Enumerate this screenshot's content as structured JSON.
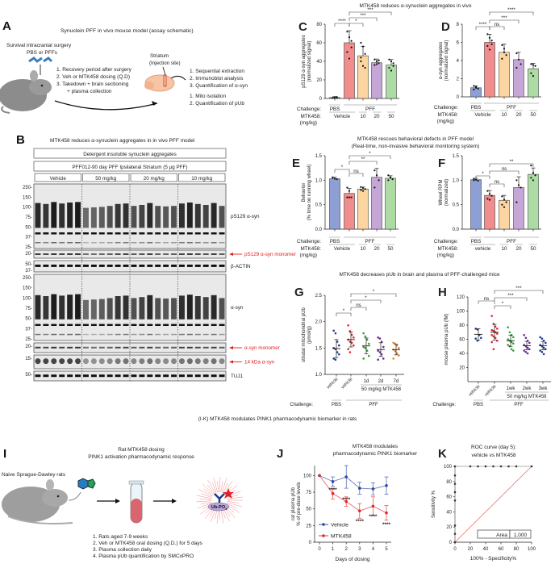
{
  "panelA": {
    "letter": "A",
    "title": "Synuclein PFF in vivo mouse model (assay schematic)",
    "surgery": "Survival intracranial surgery",
    "pbs_pffs": "PBS or PFFs",
    "steps": [
      "1. Recovery period after surgery",
      "2. Veh or MTK458 dosing (Q.D)",
      "3. Takedown + brain sectioning",
      "+ plasma collection"
    ],
    "striatum": "Striatum",
    "injection": "(Injection site)",
    "analysis1": [
      "1. Sequential extraction",
      "2. Immunoblot analysis",
      "3. Quantification of α-syn"
    ],
    "analysis2": [
      "1. Mito isolation",
      "2. Quantification of pUb"
    ]
  },
  "panelB": {
    "letter": "B",
    "title": "MTK458 reduces α-synuclein aggregates in in vivo PFF model",
    "header1": "Detergent insoluble synuclein aggregates",
    "header2": "PFF012-90 day PFF Ipsilateral Striatum (5 µg PFF)",
    "groups": [
      "Vehicle",
      "50 mg/kg",
      "20 mg/kg",
      "10 mg/kg"
    ],
    "mw_ps129": [
      "250-",
      "150-",
      "100-",
      "75-",
      "50-",
      "37-",
      "25-"
    ],
    "mw_mono1": [
      "20-"
    ],
    "mw_actin": [
      "50-",
      "37-"
    ],
    "mw_asyn": [
      "250-",
      "150-",
      "100-",
      "75-",
      "50-",
      "37-",
      "25-"
    ],
    "mw_mono2": [
      "20-"
    ],
    "mw_14": [
      "15-"
    ],
    "mw_tuj": [
      "50-"
    ],
    "labels": {
      "ps129": "pS129 α-syn",
      "ps129_mono": "pS129 α-syn monomer",
      "actin": "β-ACTIN",
      "asyn": "α-syn",
      "asyn_mono": "α-syn monomer",
      "kda14": "14 kDa α-syn",
      "tuj1": "TUJ1"
    }
  },
  "sections": {
    "cd_title": "MTK458 reduces α-synuclein aggregates in vivo",
    "ef_title1": "MTK458 rescues behavioral defects in PFF model",
    "ef_title2": "(Real-time, non-invasive behavioral monitoring system)",
    "gh_title": "MTK458 decreases pUb in brain and plasma of PFF-challenged mice",
    "ik_title": "(I-K) MTK458 modulates PINK1 pharmacodynamic biomarker in rats"
  },
  "panelI": {
    "letter": "I",
    "title1": "Rat MTK458 dosing",
    "title2": "PINK1 activation pharmacodynamic response",
    "rats": "Naive Sprague-Dawley rats",
    "ub": "Ub-PO",
    "ub_sub": "3",
    "steps": [
      "1. Rats aged 7-9 weeks",
      "2. Veh or MTK458 oral dosing (Q.D.) for 5 days",
      "3. Plasma collection daily",
      "4. Plasma pUb quantification by SMCxPRO"
    ]
  },
  "colors": {
    "pbs": "#8d9fd4",
    "vehicle": "#f28d8d",
    "d10": "#fcd5a0",
    "d20": "#c6a6d6",
    "d50": "#acdca4",
    "g_pbs": "#1f3a93",
    "g_veh": "#e0202a",
    "g_1": "#2ca02c",
    "g_2": "#6a2c91",
    "g_3": "#f07f1a",
    "red_label": "#e02020",
    "line_vehicle": "#2d47a0",
    "line_mtk": "#e02828"
  },
  "chart_data": [
    {
      "id": "C",
      "letter": "C",
      "type": "bar",
      "ylabel": "pS129 α-syn aggregates",
      "ylabel2": "(normalized signal)",
      "ylim": [
        0,
        80
      ],
      "yticks": [
        "0",
        "20",
        "40",
        "60",
        "80"
      ],
      "categories": [
        "PBS Vehicle",
        "PFF Vehicle",
        "PFF 10",
        "PFF 20",
        "PFF 50"
      ],
      "values": [
        1,
        60,
        46,
        38.5,
        36
      ],
      "sd": [
        1,
        13,
        10,
        4,
        6
      ],
      "points": [
        [
          0.5,
          1,
          1.5,
          0.8,
          1.2,
          0.6
        ],
        [
          72,
          66,
          55,
          50,
          43,
          62
        ],
        [
          60,
          56,
          48,
          40,
          35,
          33,
          44
        ],
        [
          42,
          40,
          38,
          36,
          37,
          41
        ],
        [
          42,
          40,
          35,
          33,
          30,
          38
        ]
      ],
      "significance": [
        {
          "from": 0,
          "to": 1,
          "label": "****"
        },
        {
          "from": 1,
          "to": 2,
          "label": "*"
        },
        {
          "from": 1,
          "to": 3,
          "label": "***"
        },
        {
          "from": 1,
          "to": 4,
          "label": "***"
        }
      ],
      "challenge_label": "Challenge:",
      "challenge": [
        "PBS",
        "PFF"
      ],
      "dose_label": "MTK458:",
      "dose_unit": "(mg/kg)",
      "doses": [
        "Vehicle",
        "10",
        "20",
        "50"
      ]
    },
    {
      "id": "D",
      "letter": "D",
      "type": "bar",
      "ylabel": "α-syn aggregates",
      "ylabel2": "(normalized signal)",
      "ylim": [
        0,
        8
      ],
      "yticks": [
        "0",
        "2",
        "4",
        "6",
        "8"
      ],
      "categories": [
        "PBS Vehicle",
        "PFF Vehicle",
        "PFF 10",
        "PFF 20",
        "PFF 50"
      ],
      "values": [
        1,
        6,
        4.9,
        4.1,
        3.1
      ],
      "sd": [
        0.2,
        0.9,
        0.9,
        0.8,
        0.6
      ],
      "points": [
        [
          1.2,
          1,
          0.9,
          0.8,
          1.1
        ],
        [
          6.9,
          6.5,
          5.8,
          5.6,
          5.2,
          6.2
        ],
        [
          5.7,
          5.3,
          4.6,
          4.2,
          4.9
        ],
        [
          4.8,
          4.1,
          3.6,
          3.2
        ],
        [
          3.6,
          3.5,
          3.4,
          2.6,
          2.3
        ]
      ],
      "significance": [
        {
          "from": 0,
          "to": 1,
          "label": "****"
        },
        {
          "from": 1,
          "to": 2,
          "label": "ns"
        },
        {
          "from": 1,
          "to": 3,
          "label": "***"
        },
        {
          "from": 1,
          "to": 4,
          "label": "****"
        }
      ],
      "challenge_label": "Challenge:",
      "challenge": [
        "PBS",
        "PFF"
      ],
      "dose_label": "MTK458:",
      "dose_unit": "(mg/kg)",
      "doses": [
        "Vehicle",
        "10",
        "20",
        "50"
      ]
    },
    {
      "id": "E",
      "letter": "E",
      "type": "bar",
      "ylabel": "Behavior",
      "ylabel2": "(% time on running wheel)",
      "ylim": [
        0,
        1.5
      ],
      "yticks": [
        "0.0",
        "0.5",
        "1.0",
        "1.5"
      ],
      "categories": [
        "PBS Vehicle",
        "PFF Vehicle",
        "PFF 10",
        "PFF 20",
        "PFF 50"
      ],
      "values": [
        1.03,
        0.73,
        0.82,
        1.06,
        1.04
      ],
      "sd": [
        0.03,
        0.1,
        0.04,
        0.18,
        0.05
      ],
      "points": [
        [
          1.05,
          1.03,
          1.02,
          1.06
        ],
        [
          0.85,
          0.78,
          0.65,
          0.65,
          0.65
        ],
        [
          0.86,
          0.84,
          0.82,
          0.8,
          0.78
        ],
        [
          1.2,
          1.1,
          1.0,
          0.85
        ],
        [
          1.1,
          1.06,
          1.02,
          1.0,
          1.05
        ]
      ],
      "significance": [
        {
          "from": 0,
          "to": 1,
          "label": "*"
        },
        {
          "from": 1,
          "to": 2,
          "label": "ns"
        },
        {
          "from": 1,
          "to": 3,
          "label": "**"
        },
        {
          "from": 1,
          "to": 4,
          "label": "*"
        }
      ],
      "challenge_label": "Challenge:",
      "challenge": [
        "PBS",
        "PFF"
      ],
      "dose_label": "MTK458:",
      "dose_unit": "(mg/kg)",
      "doses": [
        "Vehicle",
        "10",
        "20",
        "50"
      ]
    },
    {
      "id": "F",
      "letter": "F",
      "type": "bar",
      "ylabel": "Wheel RPM",
      "ylabel2": "(normalized)",
      "ylim": [
        0,
        1.5
      ],
      "yticks": [
        "0.0",
        "0.5",
        "1.0",
        "1.5"
      ],
      "categories": [
        "PBS vehicle",
        "PFF vehicle",
        "PFF 10",
        "PFF 20",
        "PFF 50"
      ],
      "values": [
        1.01,
        0.69,
        0.59,
        0.85,
        1.12
      ],
      "sd": [
        0.03,
        0.1,
        0.1,
        0.22,
        0.13
      ],
      "points": [
        [
          1.03,
          1.01,
          0.99,
          1.0
        ],
        [
          0.78,
          0.72,
          0.68,
          0.62,
          0.6
        ],
        [
          0.67,
          0.6,
          0.55,
          0.5,
          0.45
        ],
        [
          1.0,
          0.9,
          0.85,
          0.55
        ],
        [
          1.3,
          1.15,
          1.1,
          1.05,
          1.0
        ]
      ],
      "significance": [
        {
          "from": 0,
          "to": 1,
          "label": "*"
        },
        {
          "from": 1,
          "to": 2,
          "label": "ns"
        },
        {
          "from": 1,
          "to": 3,
          "label": "ns"
        },
        {
          "from": 1,
          "to": 4,
          "label": "**"
        }
      ],
      "challenge_label": "Challenge:",
      "challenge": [
        "PBS",
        "PFF"
      ],
      "dose_label": "MTK458:",
      "dose_unit": "(mg/kg)",
      "doses": [
        "vehicle",
        "10",
        "20",
        "50"
      ]
    },
    {
      "id": "G",
      "letter": "G",
      "type": "scatter",
      "ylabel": "striatal mitochondrial pUb",
      "ylabel2": "(pmol/g)",
      "ylim": [
        1.0,
        2.5
      ],
      "yticks": [
        "1.0",
        "1.5",
        "2.0",
        "2.5"
      ],
      "categories": [
        "vehicle",
        "vehicle",
        "1d",
        "2d",
        "7d"
      ],
      "means": [
        1.49,
        1.66,
        1.54,
        1.47,
        1.47
      ],
      "sd": [
        0.17,
        0.14,
        0.15,
        0.13,
        0.1
      ],
      "points": [
        [
          1.83,
          1.78,
          1.62,
          1.55,
          1.5,
          1.48,
          1.42,
          1.38,
          1.3,
          1.28
        ],
        [
          1.93,
          1.82,
          1.75,
          1.7,
          1.66,
          1.62,
          1.6,
          1.55,
          1.48,
          1.42
        ],
        [
          1.78,
          1.72,
          1.66,
          1.58,
          1.52,
          1.5,
          1.45,
          1.35,
          1.3
        ],
        [
          1.7,
          1.68,
          1.62,
          1.52,
          1.45,
          1.42,
          1.38,
          1.3,
          1.28
        ],
        [
          1.6,
          1.58,
          1.55,
          1.5,
          1.47,
          1.44,
          1.4,
          1.36,
          1.3
        ]
      ],
      "significance": [
        {
          "from": 0,
          "to": 1,
          "label": "*"
        },
        {
          "from": 1,
          "to": 2,
          "label": "ns"
        },
        {
          "from": 1,
          "to": 3,
          "label": "*"
        },
        {
          "from": 1,
          "to": 4,
          "label": "*"
        }
      ],
      "treatment": "50 mg/kg MTK458",
      "challenge_label": "Challenge:",
      "challenge": [
        "PBS",
        "PFF"
      ]
    },
    {
      "id": "H",
      "letter": "H",
      "type": "scatter",
      "ylabel": "mouse plasma pUb (fM)",
      "ylabel2": "",
      "ylim": [
        0,
        120
      ],
      "yticks": [
        "20",
        "40",
        "60",
        "80",
        "100",
        "120"
      ],
      "categories": [
        "vehicle",
        "vehicle",
        "1wk",
        "2wk",
        "3wk"
      ],
      "means": [
        67,
        70,
        58,
        51,
        51
      ],
      "sd": [
        8,
        11,
        8,
        6,
        6
      ],
      "points": [
        [
          75,
          74,
          66,
          62,
          61,
          58
        ],
        [
          93,
          82,
          78,
          75,
          73,
          72,
          70,
          68,
          66,
          64,
          62,
          58,
          56,
          46
        ],
        [
          77,
          70,
          66,
          63,
          60,
          58,
          56,
          54,
          52,
          50,
          46,
          44
        ],
        [
          66,
          62,
          58,
          55,
          52,
          50,
          48,
          46,
          44,
          42,
          40
        ],
        [
          63,
          61,
          58,
          55,
          52,
          50,
          48,
          46,
          44,
          42,
          39
        ]
      ],
      "significance": [
        {
          "from": 0,
          "to": 1,
          "label": "ns"
        },
        {
          "from": 1,
          "to": 2,
          "label": "*"
        },
        {
          "from": 1,
          "to": 3,
          "label": "***"
        },
        {
          "from": 1,
          "to": 4,
          "label": "***"
        }
      ],
      "treatment": "50 mg/kg MTK458",
      "challenge_label": "Challenge:",
      "challenge": [
        "PBS",
        "PFF"
      ]
    },
    {
      "id": "J",
      "letter": "J",
      "type": "line",
      "title1": "MTK458 modulates",
      "title2": "pharmacodynamic PINK1 biomarker",
      "xlabel": "Days of dosing",
      "ylabel": "rat plasma pUb",
      "ylabel2": "% of pre-dose levels",
      "x": [
        0,
        1,
        2,
        3,
        4,
        5
      ],
      "xticks": [
        "0",
        "1",
        "2",
        "3",
        "4",
        "5"
      ],
      "ylim": [
        0,
        115
      ],
      "yticks": [
        "0",
        "25",
        "50",
        "75",
        "100"
      ],
      "series": [
        {
          "name": "Vehicle",
          "values": [
            100,
            91,
            98,
            81,
            80,
            85
          ],
          "err": [
            0,
            7,
            17,
            9,
            9,
            13
          ]
        },
        {
          "name": "MTK458",
          "values": [
            100,
            73,
            61,
            47,
            54,
            44
          ],
          "err": [
            0,
            8,
            7,
            11,
            14,
            11
          ]
        }
      ],
      "stars": [
        "****",
        "****",
        "****",
        "****",
        "****"
      ]
    },
    {
      "id": "K",
      "letter": "K",
      "type": "line",
      "title1": "ROC curve (day 5):",
      "title2": "vehicle vs MTK458",
      "xlabel": "100% - Specificity%",
      "ylabel": "Sensitivity %",
      "xlim": [
        0,
        100
      ],
      "ylim": [
        0,
        100
      ],
      "xticks": [
        "0",
        "20",
        "40",
        "60",
        "80",
        "100"
      ],
      "yticks": [
        "0",
        "20",
        "40",
        "60",
        "80",
        "100"
      ],
      "roc": [
        [
          0,
          0
        ],
        [
          0,
          11
        ],
        [
          0,
          22
        ],
        [
          0,
          55
        ],
        [
          0,
          66
        ],
        [
          0,
          77
        ],
        [
          0,
          88
        ],
        [
          0,
          100
        ],
        [
          20,
          100
        ],
        [
          30,
          100
        ],
        [
          40,
          100
        ],
        [
          50,
          100
        ],
        [
          60,
          100
        ],
        [
          70,
          100
        ],
        [
          80,
          100
        ],
        [
          100,
          100
        ]
      ],
      "area_label": "Area",
      "area_value": "1.000"
    }
  ]
}
